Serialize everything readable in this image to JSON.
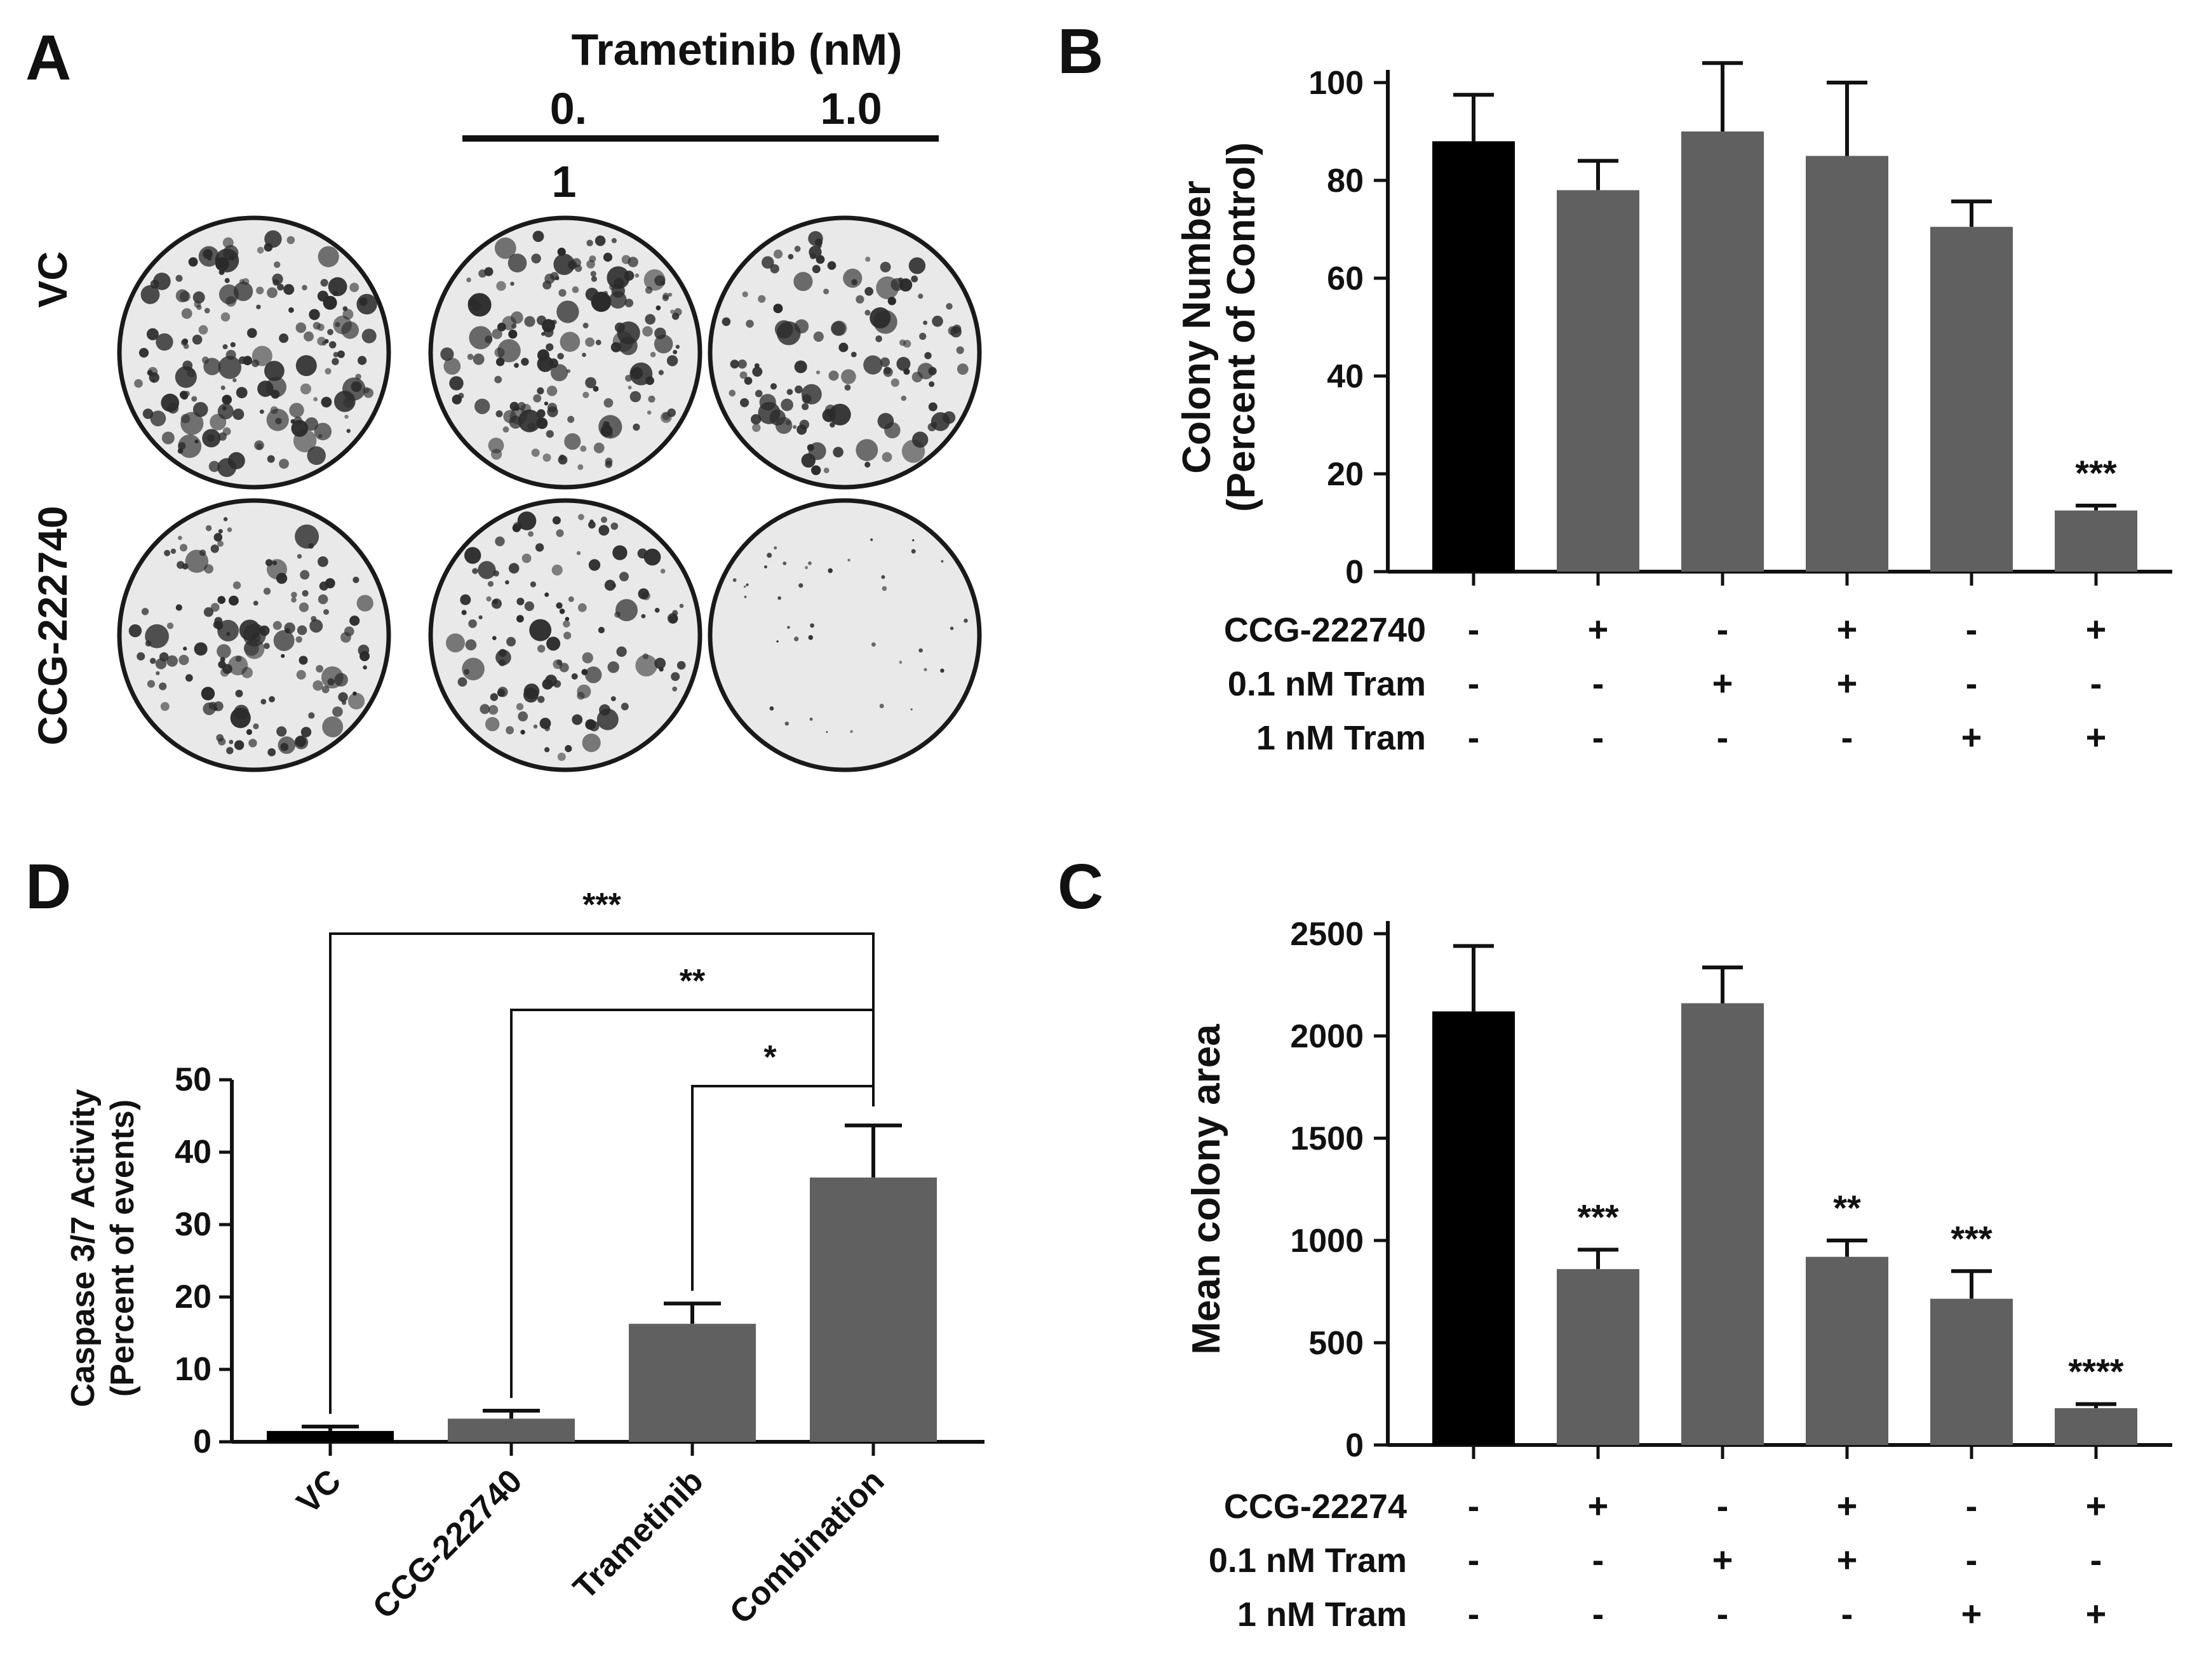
{
  "panelA": {
    "letter": "A",
    "header": "Trametinib (nM)",
    "dose_low": "0.",
    "dose_low_tail": "1",
    "dose_high": "1.0",
    "row_labels": [
      "VC",
      "CCG-222740"
    ],
    "plate_density": [
      [
        1.0,
        1.0,
        0.7
      ],
      [
        0.8,
        0.7,
        0.1
      ]
    ]
  },
  "chart_data": [
    {
      "panel": "B",
      "type": "bar",
      "ylabel": [
        "Colony Number",
        "(Percent of Control)"
      ],
      "ylim": [
        0,
        100
      ],
      "yticks": [
        0,
        20,
        40,
        60,
        80,
        100
      ],
      "values": [
        88,
        78,
        90,
        85,
        70.5,
        12.5
      ],
      "errors": [
        9.5,
        6,
        14,
        15,
        5.2,
        1
      ],
      "colors": [
        "#000000",
        "#606060",
        "#606060",
        "#606060",
        "#606060",
        "#606060"
      ],
      "significance": [
        "",
        "",
        "",
        "",
        "",
        "***"
      ],
      "condition_labels": [
        "CCG-222740",
        "0.1 nM Tram",
        "1 nM Tram"
      ],
      "condition_matrix": [
        [
          "-",
          "+",
          "-",
          "+",
          "-",
          "+"
        ],
        [
          "-",
          "-",
          "+",
          "+",
          "-",
          "-"
        ],
        [
          "-",
          "-",
          "-",
          "-",
          "+",
          "+"
        ]
      ]
    },
    {
      "panel": "C",
      "type": "bar",
      "ylabel": [
        "Mean colony area"
      ],
      "ylim": [
        0,
        2500
      ],
      "yticks": [
        0,
        500,
        1000,
        1500,
        2000,
        2500
      ],
      "values": [
        2120,
        860,
        2160,
        920,
        715,
        180
      ],
      "errors": [
        320,
        95,
        175,
        80,
        135,
        20
      ],
      "colors": [
        "#000000",
        "#606060",
        "#606060",
        "#606060",
        "#606060",
        "#606060"
      ],
      "significance": [
        "",
        "***",
        "",
        "**",
        "***",
        "****"
      ],
      "condition_labels": [
        "CCG-22274",
        "0.1 nM Tram",
        "1 nM Tram"
      ],
      "condition_matrix": [
        [
          "-",
          "+",
          "-",
          "+",
          "-",
          "+"
        ],
        [
          "-",
          "-",
          "+",
          "+",
          "-",
          "-"
        ],
        [
          "-",
          "-",
          "-",
          "-",
          "+",
          "+"
        ]
      ]
    },
    {
      "panel": "D",
      "type": "bar",
      "ylabel": [
        "Caspase 3/7 Activity",
        "(Percent of events)"
      ],
      "ylim": [
        0,
        50
      ],
      "yticks": [
        0,
        10,
        20,
        30,
        40,
        50
      ],
      "categories": [
        "VC",
        "CCG-222740",
        "Trametinib",
        "Combination"
      ],
      "values": [
        1.5,
        3.2,
        16.3,
        36.5
      ],
      "errors": [
        0.6,
        1.1,
        2.8,
        7.2
      ],
      "colors": [
        "#000000",
        "#606060",
        "#606060",
        "#606060"
      ],
      "comparisons": [
        {
          "from": 0,
          "to": 3,
          "label": "***"
        },
        {
          "from": 1,
          "to": 3,
          "label": "**"
        },
        {
          "from": 2,
          "to": 3,
          "label": "*"
        }
      ]
    }
  ],
  "panel_letters": {
    "B": "B",
    "C": "C",
    "D": "D"
  }
}
